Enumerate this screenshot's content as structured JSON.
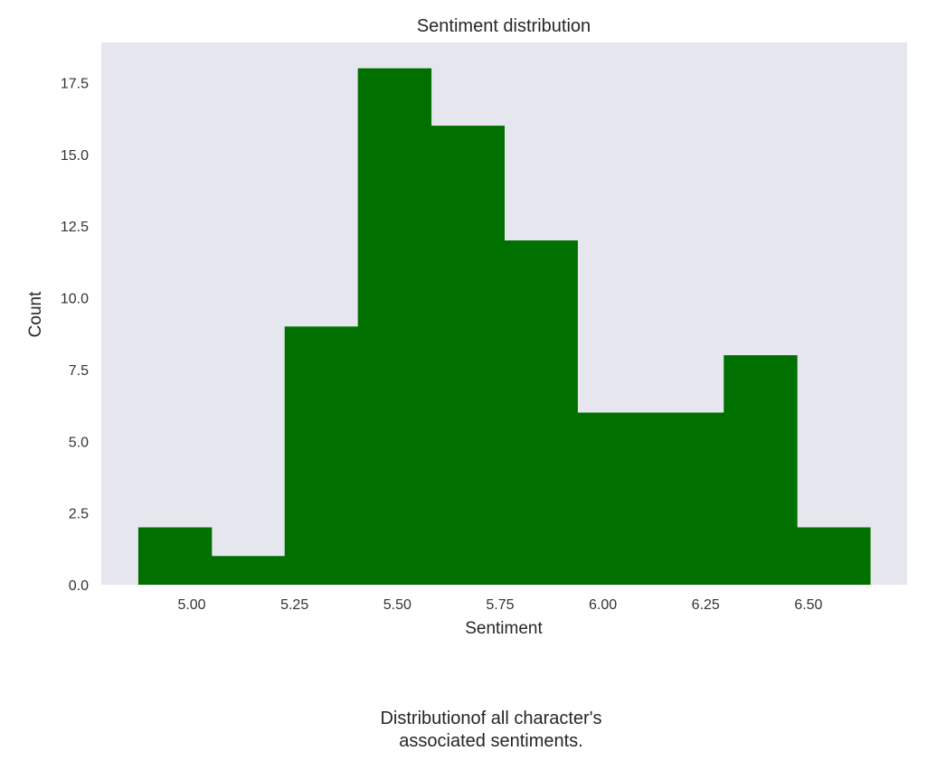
{
  "chart_data": {
    "type": "bar",
    "title": "Sentiment distribution",
    "xlabel": "Sentiment",
    "ylabel": "Count",
    "bin_edges": [
      4.87,
      5.048,
      5.226,
      5.404,
      5.582,
      5.76,
      5.938,
      6.116,
      6.294,
      6.472,
      6.65
    ],
    "values": [
      2,
      1,
      9,
      18,
      16,
      12,
      6,
      6,
      8,
      2
    ],
    "xlim": [
      4.78,
      6.74
    ],
    "ylim": [
      0,
      18.9
    ],
    "xticks": [
      5.0,
      5.25,
      5.5,
      5.75,
      6.0,
      6.25,
      6.5
    ],
    "xtick_labels": [
      "5.00",
      "5.25",
      "5.50",
      "5.75",
      "6.00",
      "6.25",
      "6.50"
    ],
    "yticks": [
      0,
      2.5,
      5,
      7.5,
      10,
      12.5,
      15,
      17.5
    ],
    "ytick_labels": [
      "0.0",
      "2.5",
      "5.0",
      "7.5",
      "10.0",
      "12.5",
      "15.0",
      "17.5"
    ],
    "bar_color": "#007000",
    "background_color": "#e6e6ef",
    "grid": false
  },
  "caption": {
    "line1": "Distributionof all character's",
    "line2": "associated sentiments."
  }
}
